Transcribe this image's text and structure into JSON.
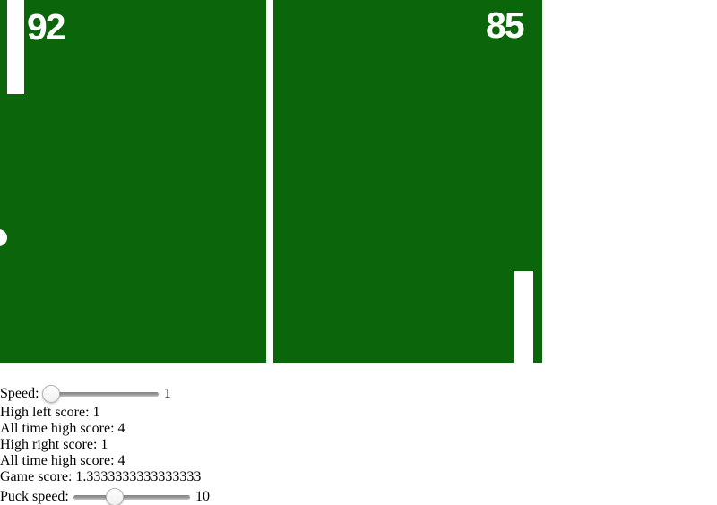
{
  "game": {
    "left": {
      "score": "92"
    },
    "right": {
      "score": "85"
    },
    "colors": {
      "field_green": "#0b650b",
      "paddle_white": "#ffffff",
      "score_text": "#ffffff"
    }
  },
  "controls": {
    "speed": {
      "label": "Speed:",
      "value": "1"
    },
    "puck_speed": {
      "label": "Puck speed:",
      "value": "10"
    },
    "stats": [
      "High left score: 1",
      "All time high score: 4",
      "High right score: 1",
      "All time high score: 4",
      "Game score: 1.3333333333333333"
    ]
  }
}
